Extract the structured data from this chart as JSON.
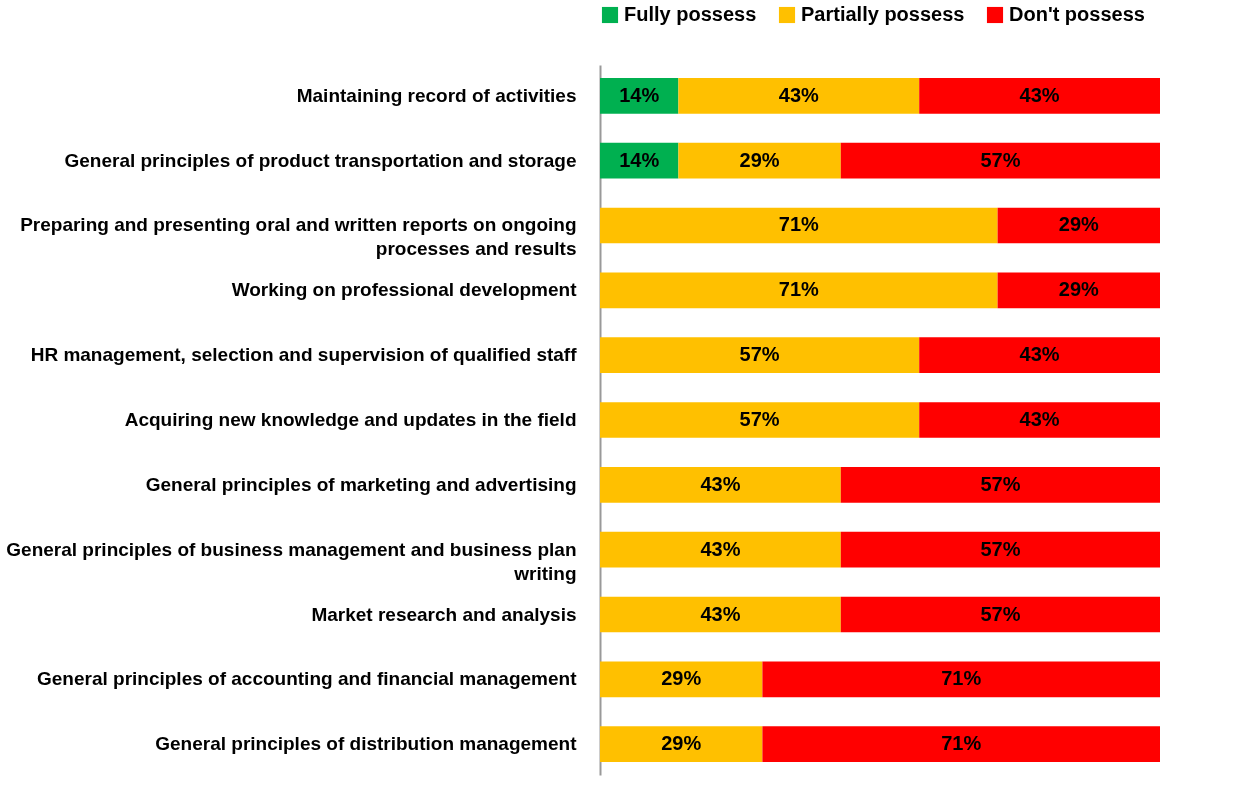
{
  "chart_data": {
    "type": "bar",
    "orientation": "horizontal",
    "stacked": true,
    "categories": [
      "Maintaining record of activities",
      "General principles of product transportation and storage",
      "Preparing and presenting oral and written reports on ongoing processes and results",
      "Working on professional development",
      "HR management, selection and supervision of qualified staff",
      "Acquiring new knowledge and updates in the field",
      "General principles of marketing and advertising",
      "General principles of business management and business plan writing",
      "Market research and analysis",
      "General principles of accounting and financial management",
      "General principles of distribution management"
    ],
    "series": [
      {
        "name": "Fully possess",
        "color": "#00b050",
        "values": [
          14,
          14,
          null,
          null,
          null,
          null,
          null,
          null,
          null,
          null,
          null
        ],
        "value_labels": [
          "14%",
          "14%",
          null,
          null,
          null,
          null,
          null,
          null,
          null,
          null,
          null
        ]
      },
      {
        "name": "Partially possess",
        "color": "#ffc000",
        "values": [
          43,
          29,
          71,
          71,
          57,
          57,
          43,
          43,
          43,
          29,
          29
        ],
        "value_labels": [
          "43%",
          "29%",
          "71%",
          "71%",
          "57%",
          "57%",
          "43%",
          "43%",
          "43%",
          "29%",
          "29%"
        ]
      },
      {
        "name": "Don't possess",
        "color": "#ff0000",
        "values": [
          43,
          57,
          29,
          29,
          43,
          43,
          57,
          57,
          57,
          71,
          71
        ],
        "value_labels": [
          "43%",
          "57%",
          "29%",
          "29%",
          "43%",
          "43%",
          "57%",
          "57%",
          "57%",
          "71%",
          "71%"
        ]
      }
    ],
    "xlim": [
      0,
      100
    ],
    "tick_labels": "y",
    "legend": "top"
  }
}
